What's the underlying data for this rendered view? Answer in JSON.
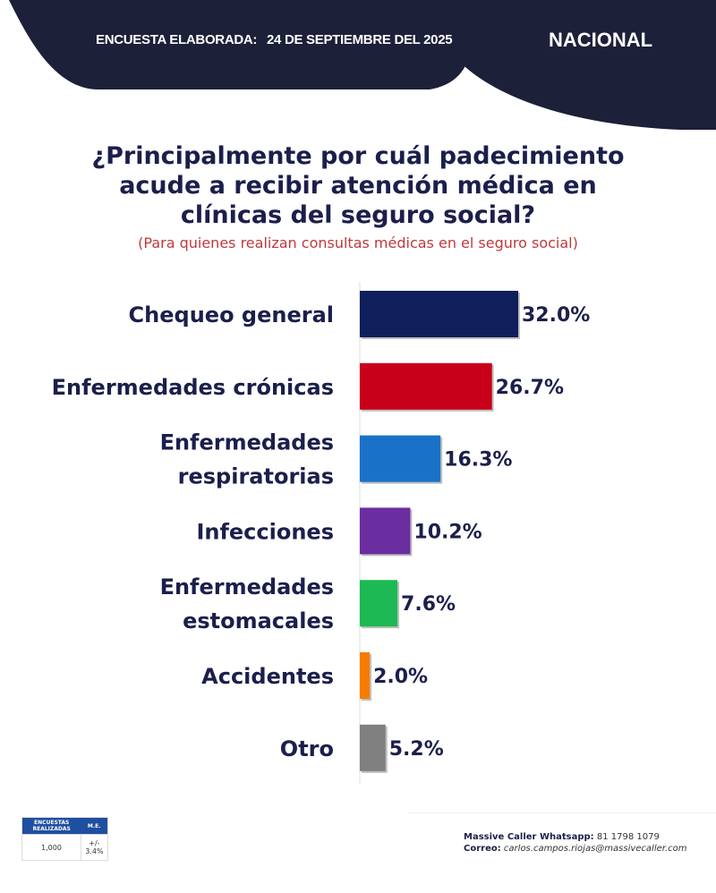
{
  "header": {
    "survey_label": "ENCUESTA ELABORADA:",
    "survey_date": "24 DE SEPTIEMBRE DEL 2025",
    "scope": "NACIONAL",
    "bg_color": "#1c2038"
  },
  "chart_data": {
    "type": "bar",
    "orientation": "horizontal",
    "title": "¿Principalmente por cuál padecimiento acude a recibir atención médica en clínicas del seguro social?",
    "subtitle": "(Para quienes realizan consultas médicas en el seguro social)",
    "categories": [
      [
        "Chequeo general"
      ],
      [
        "Enfermedades crónicas"
      ],
      [
        "Enfermedades",
        "respiratorias"
      ],
      [
        "Infecciones"
      ],
      [
        "Enfermedades",
        "estomacales"
      ],
      [
        "Accidentes"
      ],
      [
        "Otro"
      ]
    ],
    "values": [
      32.0,
      26.7,
      16.3,
      10.2,
      7.6,
      2.0,
      5.2
    ],
    "labels": [
      "32.0%",
      "26.7%",
      "16.3%",
      "10.2%",
      "7.6%",
      "2.0%",
      "5.2%"
    ],
    "colors": [
      "#0f1f5c",
      "#c8001a",
      "#1a72c8",
      "#6a2ea0",
      "#1db954",
      "#f57c00",
      "#808080"
    ],
    "unit": "%",
    "xlim": [
      0,
      40
    ]
  },
  "methodology": {
    "col1_header": "ENCUESTAS REALIZADAS",
    "col2_header": "M.E.",
    "sample": "1,000",
    "margin_error": "+/- 3.4%"
  },
  "contact": {
    "whatsapp_label": "Massive Caller Whatsapp:",
    "whatsapp": "81 1798 1079",
    "email_label": "Correo:",
    "email": "carlos.campos.riojas@massivecaller.com"
  }
}
